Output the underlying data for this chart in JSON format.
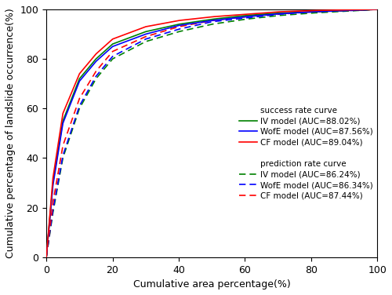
{
  "title": "",
  "xlabel": "Cumulative area percentage(%)",
  "ylabel": "Cumulative percentage of landslide occurrence(%)",
  "xlim": [
    0,
    100
  ],
  "ylim": [
    0,
    100
  ],
  "xticks": [
    0,
    20,
    40,
    60,
    80,
    100
  ],
  "yticks": [
    0,
    20,
    40,
    60,
    80,
    100
  ],
  "success_IV_color": "#008000",
  "success_WofE_color": "#0000ff",
  "success_CF_color": "#ff0000",
  "predict_IV_color": "#008000",
  "predict_WofE_color": "#0000ff",
  "predict_CF_color": "#ff0000",
  "legend_success_title": "success rate curve",
  "legend_predict_title": "prediction rate curve",
  "legend_IV_success": "IV model (AUC=88.02%)",
  "legend_WofE_success": "WofE model (AUC=87.56%)",
  "legend_CF_success": "CF model (AUC=89.04%)",
  "legend_IV_predict": "IV model (AUC=86.24%)",
  "legend_WofE_predict": "WofE model (AUC=86.34%)",
  "legend_CF_predict": "CF model (AUC=87.44%)",
  "figsize": [
    5.0,
    3.76
  ],
  "dpi": 100,
  "success_IV_ctrl": [
    [
      0,
      0
    ],
    [
      2,
      30
    ],
    [
      5,
      55
    ],
    [
      10,
      72
    ],
    [
      15,
      80
    ],
    [
      20,
      86
    ],
    [
      30,
      91
    ],
    [
      40,
      94
    ],
    [
      50,
      96
    ],
    [
      60,
      97.5
    ],
    [
      70,
      98.5
    ],
    [
      80,
      99
    ],
    [
      90,
      99.5
    ],
    [
      100,
      100
    ]
  ],
  "success_WofE_ctrl": [
    [
      0,
      0
    ],
    [
      2,
      29
    ],
    [
      5,
      54
    ],
    [
      10,
      71
    ],
    [
      15,
      79
    ],
    [
      20,
      85
    ],
    [
      30,
      90
    ],
    [
      40,
      93.5
    ],
    [
      50,
      95.5
    ],
    [
      60,
      97
    ],
    [
      70,
      98.2
    ],
    [
      80,
      99
    ],
    [
      90,
      99.5
    ],
    [
      100,
      100
    ]
  ],
  "success_CF_ctrl": [
    [
      0,
      0
    ],
    [
      2,
      32
    ],
    [
      5,
      58
    ],
    [
      10,
      74
    ],
    [
      15,
      82
    ],
    [
      20,
      88
    ],
    [
      30,
      93
    ],
    [
      40,
      95.5
    ],
    [
      50,
      97
    ],
    [
      60,
      98
    ],
    [
      70,
      99
    ],
    [
      80,
      99.5
    ],
    [
      90,
      99.8
    ],
    [
      100,
      100
    ]
  ],
  "predict_IV_ctrl": [
    [
      0,
      0
    ],
    [
      2,
      18
    ],
    [
      5,
      40
    ],
    [
      10,
      60
    ],
    [
      15,
      72
    ],
    [
      20,
      80
    ],
    [
      30,
      87
    ],
    [
      40,
      91
    ],
    [
      50,
      94
    ],
    [
      60,
      96
    ],
    [
      70,
      97.5
    ],
    [
      80,
      98.5
    ],
    [
      90,
      99.2
    ],
    [
      100,
      100
    ]
  ],
  "predict_WofE_ctrl": [
    [
      0,
      0
    ],
    [
      2,
      19
    ],
    [
      5,
      41
    ],
    [
      10,
      61
    ],
    [
      15,
      73
    ],
    [
      20,
      81
    ],
    [
      30,
      88
    ],
    [
      40,
      92
    ],
    [
      50,
      95
    ],
    [
      60,
      96.5
    ],
    [
      70,
      98
    ],
    [
      80,
      99
    ],
    [
      90,
      99.4
    ],
    [
      100,
      100
    ]
  ],
  "predict_CF_ctrl": [
    [
      0,
      0
    ],
    [
      2,
      22
    ],
    [
      5,
      45
    ],
    [
      10,
      64
    ],
    [
      15,
      75
    ],
    [
      20,
      83
    ],
    [
      30,
      89
    ],
    [
      40,
      93
    ],
    [
      50,
      95.5
    ],
    [
      60,
      97
    ],
    [
      70,
      98.2
    ],
    [
      80,
      99
    ],
    [
      90,
      99.5
    ],
    [
      100,
      100
    ]
  ]
}
